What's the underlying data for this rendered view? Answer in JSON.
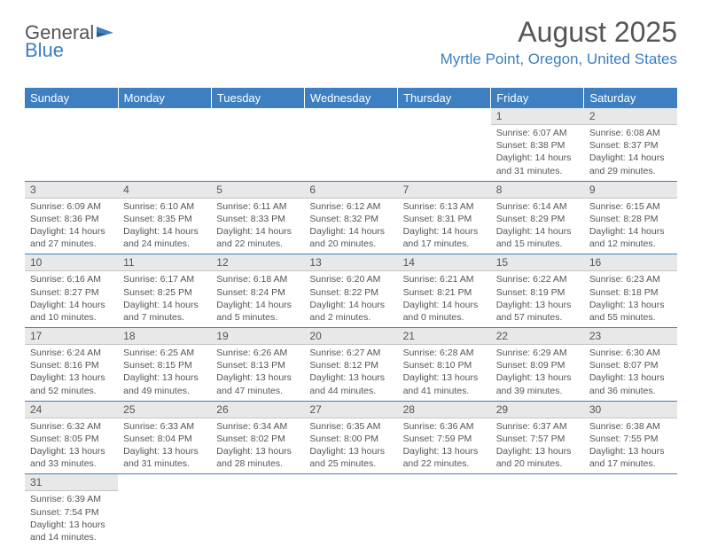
{
  "logo": {
    "text1": "General",
    "text2": "Blue",
    "icon_color": "#3d7fc0"
  },
  "header": {
    "month_title": "August 2025",
    "location": "Myrtle Point, Oregon, United States"
  },
  "colors": {
    "accent": "#3d7fc0",
    "header_bg": "#3d7fc0",
    "daynum_bg": "#e8e8e8",
    "row_border": "#3d7fc0",
    "text": "#555555"
  },
  "weekdays": [
    "Sunday",
    "Monday",
    "Tuesday",
    "Wednesday",
    "Thursday",
    "Friday",
    "Saturday"
  ],
  "weeks": [
    [
      {
        "blank": true
      },
      {
        "blank": true
      },
      {
        "blank": true
      },
      {
        "blank": true
      },
      {
        "blank": true
      },
      {
        "n": "1",
        "sr": "6:07 AM",
        "ss": "8:38 PM",
        "dl": "14 hours and 31 minutes."
      },
      {
        "n": "2",
        "sr": "6:08 AM",
        "ss": "8:37 PM",
        "dl": "14 hours and 29 minutes."
      }
    ],
    [
      {
        "n": "3",
        "sr": "6:09 AM",
        "ss": "8:36 PM",
        "dl": "14 hours and 27 minutes."
      },
      {
        "n": "4",
        "sr": "6:10 AM",
        "ss": "8:35 PM",
        "dl": "14 hours and 24 minutes."
      },
      {
        "n": "5",
        "sr": "6:11 AM",
        "ss": "8:33 PM",
        "dl": "14 hours and 22 minutes."
      },
      {
        "n": "6",
        "sr": "6:12 AM",
        "ss": "8:32 PM",
        "dl": "14 hours and 20 minutes."
      },
      {
        "n": "7",
        "sr": "6:13 AM",
        "ss": "8:31 PM",
        "dl": "14 hours and 17 minutes."
      },
      {
        "n": "8",
        "sr": "6:14 AM",
        "ss": "8:29 PM",
        "dl": "14 hours and 15 minutes."
      },
      {
        "n": "9",
        "sr": "6:15 AM",
        "ss": "8:28 PM",
        "dl": "14 hours and 12 minutes."
      }
    ],
    [
      {
        "n": "10",
        "sr": "6:16 AM",
        "ss": "8:27 PM",
        "dl": "14 hours and 10 minutes."
      },
      {
        "n": "11",
        "sr": "6:17 AM",
        "ss": "8:25 PM",
        "dl": "14 hours and 7 minutes."
      },
      {
        "n": "12",
        "sr": "6:18 AM",
        "ss": "8:24 PM",
        "dl": "14 hours and 5 minutes."
      },
      {
        "n": "13",
        "sr": "6:20 AM",
        "ss": "8:22 PM",
        "dl": "14 hours and 2 minutes."
      },
      {
        "n": "14",
        "sr": "6:21 AM",
        "ss": "8:21 PM",
        "dl": "14 hours and 0 minutes."
      },
      {
        "n": "15",
        "sr": "6:22 AM",
        "ss": "8:19 PM",
        "dl": "13 hours and 57 minutes."
      },
      {
        "n": "16",
        "sr": "6:23 AM",
        "ss": "8:18 PM",
        "dl": "13 hours and 55 minutes."
      }
    ],
    [
      {
        "n": "17",
        "sr": "6:24 AM",
        "ss": "8:16 PM",
        "dl": "13 hours and 52 minutes."
      },
      {
        "n": "18",
        "sr": "6:25 AM",
        "ss": "8:15 PM",
        "dl": "13 hours and 49 minutes."
      },
      {
        "n": "19",
        "sr": "6:26 AM",
        "ss": "8:13 PM",
        "dl": "13 hours and 47 minutes."
      },
      {
        "n": "20",
        "sr": "6:27 AM",
        "ss": "8:12 PM",
        "dl": "13 hours and 44 minutes."
      },
      {
        "n": "21",
        "sr": "6:28 AM",
        "ss": "8:10 PM",
        "dl": "13 hours and 41 minutes."
      },
      {
        "n": "22",
        "sr": "6:29 AM",
        "ss": "8:09 PM",
        "dl": "13 hours and 39 minutes."
      },
      {
        "n": "23",
        "sr": "6:30 AM",
        "ss": "8:07 PM",
        "dl": "13 hours and 36 minutes."
      }
    ],
    [
      {
        "n": "24",
        "sr": "6:32 AM",
        "ss": "8:05 PM",
        "dl": "13 hours and 33 minutes."
      },
      {
        "n": "25",
        "sr": "6:33 AM",
        "ss": "8:04 PM",
        "dl": "13 hours and 31 minutes."
      },
      {
        "n": "26",
        "sr": "6:34 AM",
        "ss": "8:02 PM",
        "dl": "13 hours and 28 minutes."
      },
      {
        "n": "27",
        "sr": "6:35 AM",
        "ss": "8:00 PM",
        "dl": "13 hours and 25 minutes."
      },
      {
        "n": "28",
        "sr": "6:36 AM",
        "ss": "7:59 PM",
        "dl": "13 hours and 22 minutes."
      },
      {
        "n": "29",
        "sr": "6:37 AM",
        "ss": "7:57 PM",
        "dl": "13 hours and 20 minutes."
      },
      {
        "n": "30",
        "sr": "6:38 AM",
        "ss": "7:55 PM",
        "dl": "13 hours and 17 minutes."
      }
    ],
    [
      {
        "n": "31",
        "sr": "6:39 AM",
        "ss": "7:54 PM",
        "dl": "13 hours and 14 minutes."
      },
      {
        "blank": true
      },
      {
        "blank": true
      },
      {
        "blank": true
      },
      {
        "blank": true
      },
      {
        "blank": true
      },
      {
        "blank": true
      }
    ]
  ],
  "labels": {
    "sunrise": "Sunrise: ",
    "sunset": "Sunset: ",
    "daylight": "Daylight: "
  }
}
